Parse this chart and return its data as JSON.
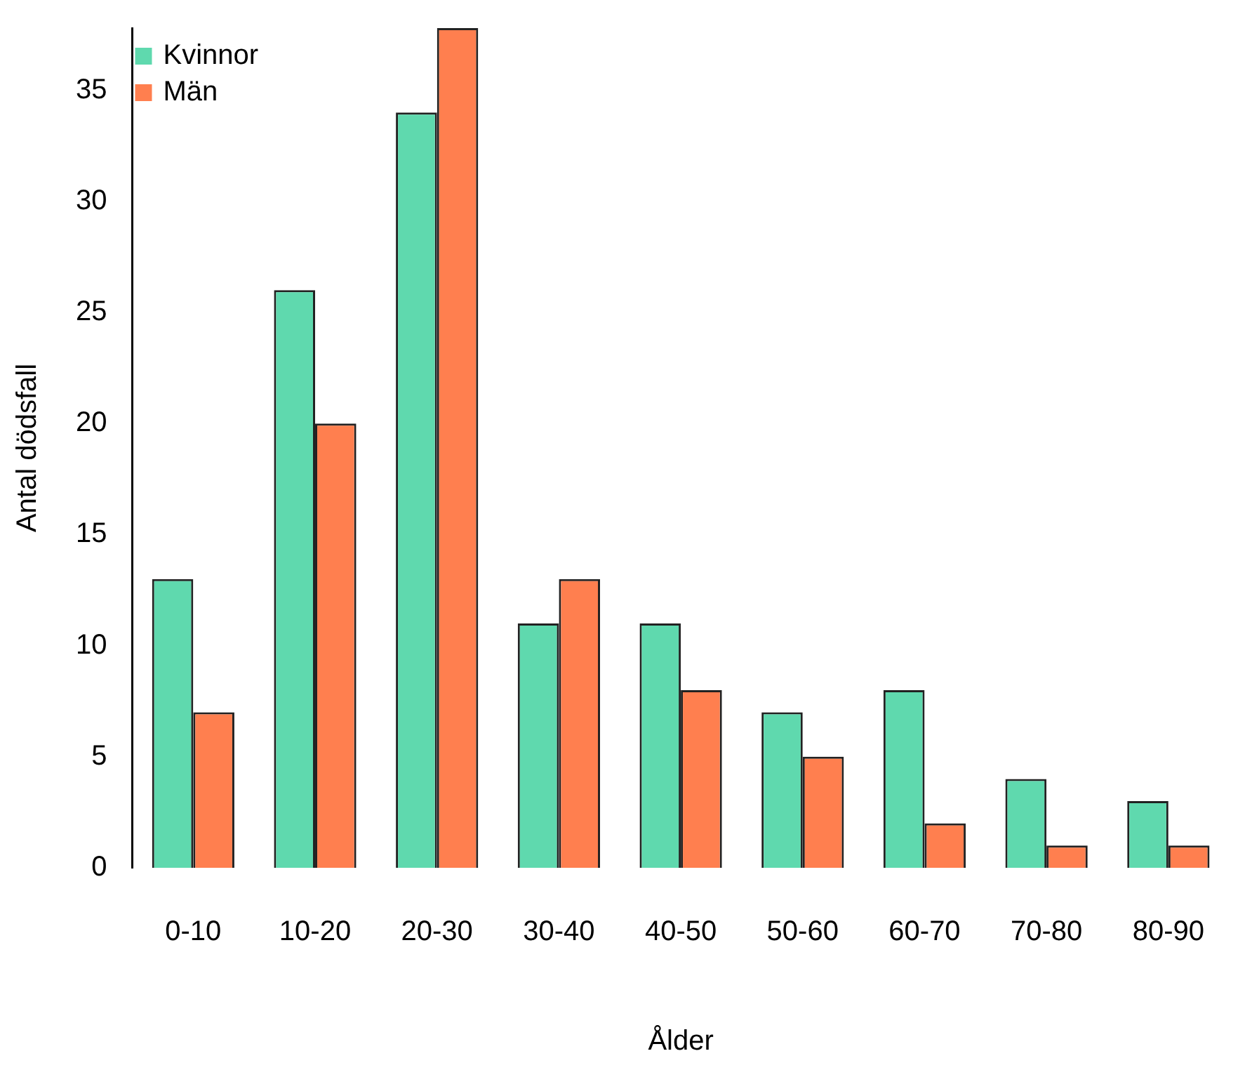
{
  "chart_data": {
    "type": "bar",
    "xlabel": "Ålder",
    "ylabel": "Antal dödsfall",
    "categories": [
      "0-10",
      "10-20",
      "20-30",
      "30-40",
      "40-50",
      "50-60",
      "60-70",
      "70-80",
      "80-90"
    ],
    "series": [
      {
        "name": "Kvinnor",
        "color": "#5fd9ae",
        "values": [
          13,
          26,
          34,
          11,
          11,
          7,
          8,
          4,
          3
        ]
      },
      {
        "name": "Män",
        "color": "#ff7f4f",
        "values": [
          7,
          20,
          37.8,
          13,
          8,
          5,
          2,
          1,
          1
        ]
      }
    ],
    "ylim": [
      0,
      37.8
    ],
    "yticks": [
      0,
      5,
      10,
      15,
      20,
      25,
      30,
      35
    ],
    "grid": false,
    "legend": "top left"
  }
}
